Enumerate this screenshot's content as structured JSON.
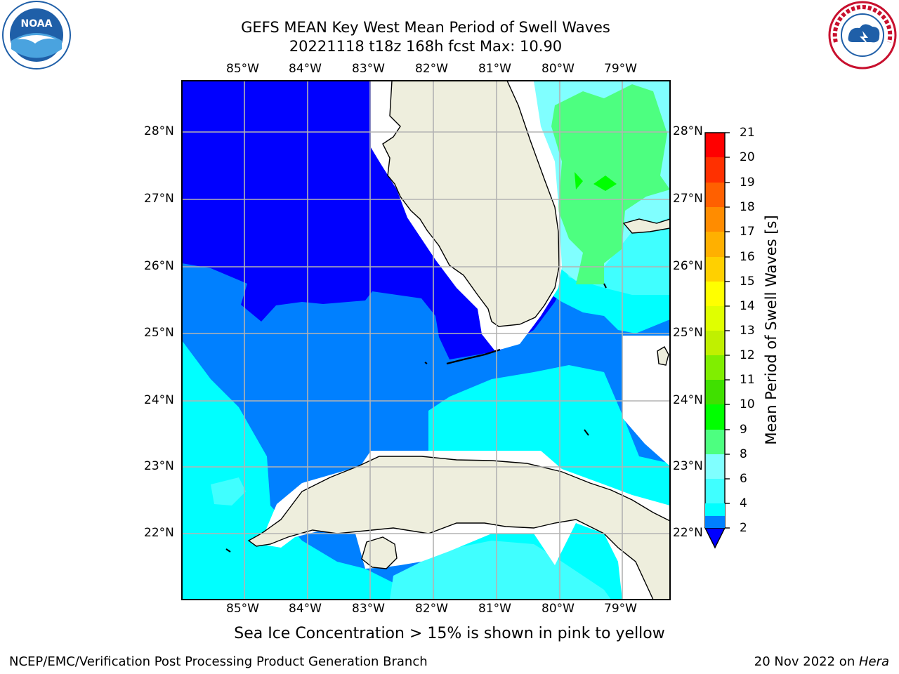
{
  "header": {
    "title_line1": "GEFS MEAN Key West Mean Period of Swell Waves",
    "title_line2": "20221118 t18z 168h fcst   Max: 10.90"
  },
  "logos": {
    "left": {
      "text": "NOAA",
      "icon": "noaa-logo-icon",
      "color": "#1f5fa8"
    },
    "right": {
      "icon": "nws-logo-icon",
      "color": "#c8102e"
    }
  },
  "map": {
    "lon_range": [
      -86,
      -78.3
    ],
    "lat_range": [
      21.05,
      28.75
    ],
    "lon_ticks": [
      "85°W",
      "84°W",
      "83°W",
      "82°W",
      "81°W",
      "80°W",
      "79°W"
    ],
    "lat_ticks": [
      "28°N",
      "27°N",
      "26°N",
      "25°N",
      "24°N",
      "23°N",
      "22°N"
    ],
    "land_color": "#eeeedd",
    "grid": true
  },
  "colorbar": {
    "label": "Mean Period of Swell Waves [s]",
    "ticks": [
      "2",
      "4",
      "6",
      "8",
      "9",
      "10",
      "11",
      "12",
      "13",
      "14",
      "15",
      "16",
      "17",
      "18",
      "19",
      "20",
      "21"
    ],
    "colors": [
      "#0000ff",
      "#0080ff",
      "#00ffff",
      "#40ffff",
      "#80ffff",
      "#4dff80",
      "#00ff00",
      "#40e000",
      "#80ee00",
      "#c0f000",
      "#e0ff00",
      "#ffff00",
      "#ffd000",
      "#ffb000",
      "#ff8c00",
      "#ff6000",
      "#ff3000",
      "#ff0000"
    ]
  },
  "note": "Sea Ice Concentration > 15% is shown in pink to yellow",
  "footer": {
    "left": "NCEP/EMC/Verification Post Processing Product Generation Branch",
    "date": "20 Nov 2022 on ",
    "host": "Hera"
  }
}
